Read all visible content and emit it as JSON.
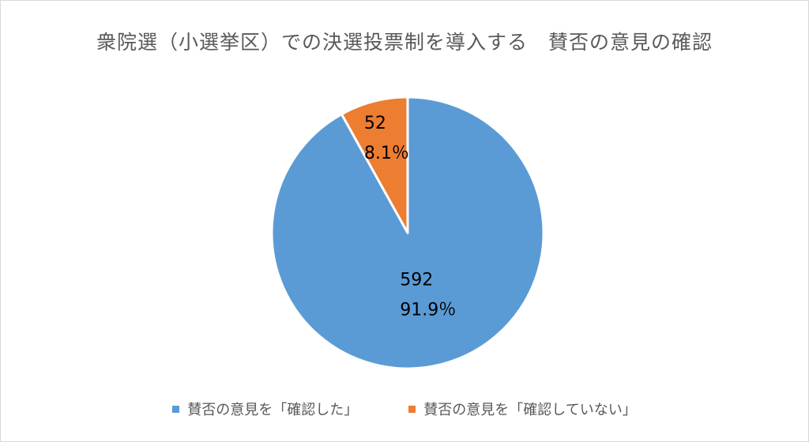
{
  "chart_data": {
    "type": "pie",
    "title": "衆院選（小選挙区）での決選投票制を導入する　賛否の意見の確認",
    "categories": [
      "賛否の意見を「確認した」",
      "賛否の意見を「確認していない」"
    ],
    "values": [
      592,
      52
    ],
    "percent_labels": [
      "91.9％",
      "8.1％"
    ],
    "value_labels": [
      "592",
      "52"
    ],
    "colors": [
      "#5B9BD5",
      "#ED7D31"
    ],
    "start_angle_deg": 0,
    "direction": "clockwise",
    "legend_position": "bottom"
  }
}
